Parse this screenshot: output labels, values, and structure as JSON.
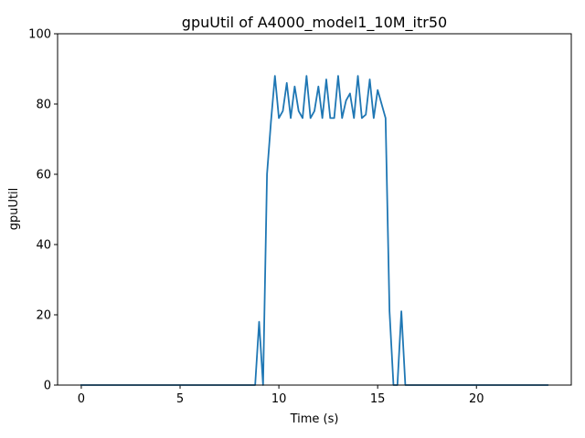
{
  "chart_data": {
    "type": "line",
    "title": "gpuUtil of A4000_model1_10M_itr50",
    "xlabel": "Time (s)",
    "ylabel": "gpuUtil",
    "xlim": [
      -1.2,
      24.8
    ],
    "ylim": [
      0,
      100
    ],
    "xticks": [
      0,
      5,
      10,
      15,
      20
    ],
    "yticks": [
      0,
      20,
      40,
      60,
      80,
      100
    ],
    "grid": false,
    "legend": "none",
    "series": [
      {
        "color": "#1f77b4",
        "x": [
          0,
          8.8,
          9.0,
          9.2,
          9.4,
          9.6,
          9.8,
          10.0,
          10.2,
          10.4,
          10.6,
          10.8,
          11.0,
          11.2,
          11.4,
          11.6,
          11.8,
          12.0,
          12.2,
          12.4,
          12.6,
          12.8,
          13.0,
          13.2,
          13.4,
          13.6,
          13.8,
          14.0,
          14.2,
          14.4,
          14.6,
          14.8,
          15.0,
          15.2,
          15.4,
          15.6,
          15.8,
          16.0,
          16.2,
          16.4,
          16.6,
          23.6
        ],
        "y": [
          0,
          0,
          18,
          0,
          60,
          75,
          88,
          76,
          78,
          86,
          76,
          85,
          78,
          76,
          88,
          76,
          78,
          85,
          76,
          87,
          76,
          76,
          88,
          76,
          81,
          83,
          76,
          88,
          76,
          77,
          87,
          76,
          84,
          80,
          76,
          21,
          0,
          0,
          21,
          0,
          0,
          0
        ]
      }
    ]
  }
}
